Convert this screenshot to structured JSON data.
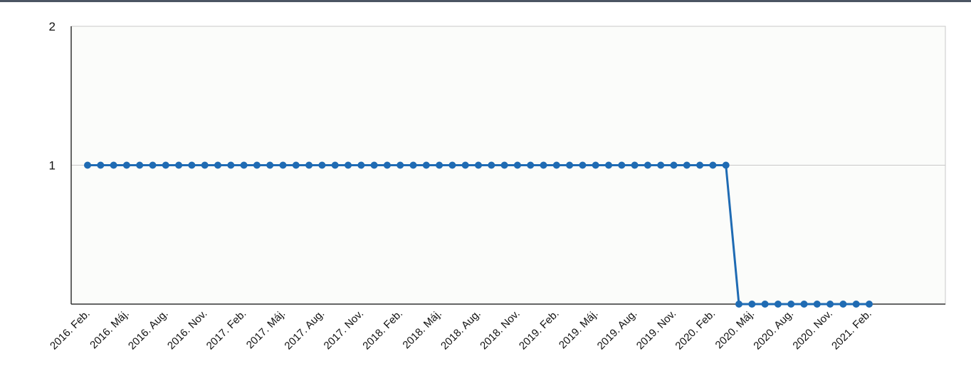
{
  "chart_data": {
    "type": "line",
    "title": "",
    "xlabel": "",
    "ylabel": "",
    "ylim": [
      0,
      2
    ],
    "y_ticks": [
      "2",
      "1"
    ],
    "x_ticks": [
      "2016. Feb.",
      "2016. Máj.",
      "2016. Aug.",
      "2016. Nov.",
      "2017. Feb.",
      "2017. Máj.",
      "2017. Aug.",
      "2017. Nov.",
      "2018. Feb.",
      "2018. Máj.",
      "2018. Aug.",
      "2018. Nov.",
      "2019. Feb.",
      "2019. Máj.",
      "2019. Aug.",
      "2019. Nov.",
      "2020. Feb.",
      "2020. Máj.",
      "2020. Aug.",
      "2020. Nov.",
      "2021. Feb."
    ],
    "grid": true,
    "legend": "none",
    "series": [
      {
        "values": [
          1,
          1,
          1,
          1,
          1,
          1,
          1,
          1,
          1,
          1,
          1,
          1,
          1,
          1,
          1,
          1,
          1,
          1,
          1,
          1,
          1,
          1,
          1,
          1,
          1,
          1,
          1,
          1,
          1,
          1,
          1,
          1,
          1,
          1,
          1,
          1,
          1,
          1,
          1,
          1,
          1,
          1,
          1,
          1,
          1,
          1,
          1,
          1,
          1,
          1,
          0,
          0,
          0,
          0,
          0,
          0,
          0,
          0,
          0,
          0,
          0
        ],
        "color": "#1f6bb3"
      }
    ],
    "colors": {
      "plot_bg": "#fbfcfa",
      "grid": "#c8c8c8",
      "axis": "#333333"
    }
  }
}
